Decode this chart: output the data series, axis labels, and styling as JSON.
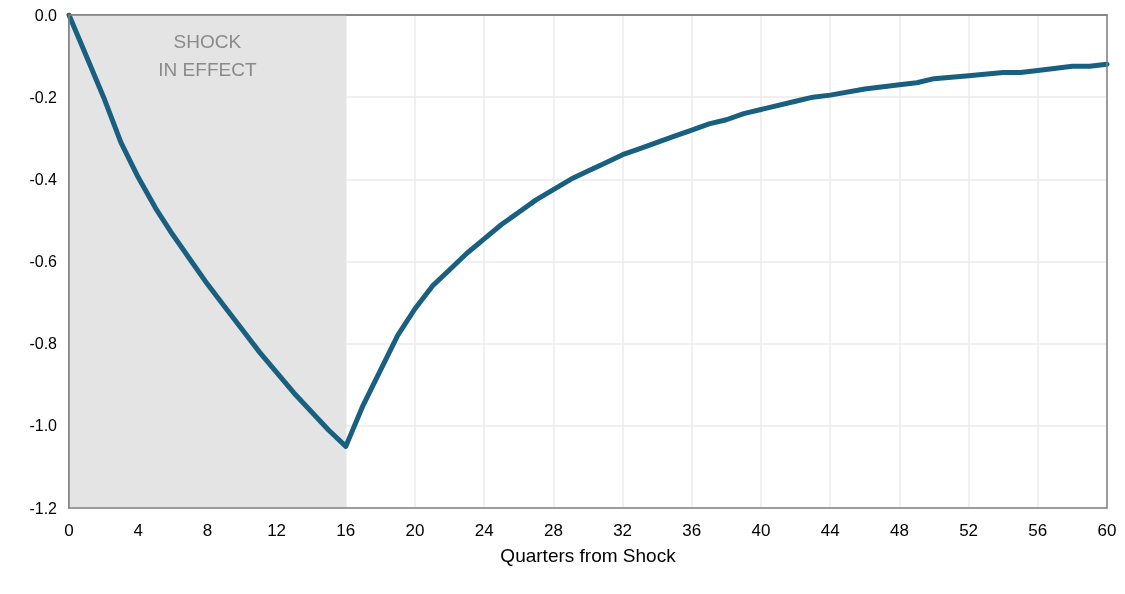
{
  "chart_data": {
    "type": "line",
    "xlabel": "Quarters from Shock",
    "x": [
      0,
      1,
      2,
      3,
      4,
      5,
      6,
      7,
      8,
      9,
      10,
      11,
      12,
      13,
      14,
      15,
      16,
      17,
      18,
      19,
      20,
      21,
      22,
      23,
      24,
      25,
      26,
      27,
      28,
      29,
      30,
      31,
      32,
      33,
      34,
      35,
      36,
      37,
      38,
      39,
      40,
      42,
      43,
      44,
      46,
      48,
      49,
      50,
      52,
      54,
      55,
      56,
      58,
      59,
      60
    ],
    "series": [
      {
        "color": "#195f80",
        "values": [
          0,
          -0.1,
          -0.2,
          -0.31,
          -0.395,
          -0.47,
          -0.535,
          -0.595,
          -0.655,
          -0.71,
          -0.765,
          -0.82,
          -0.87,
          -0.92,
          -0.965,
          -1.01,
          -1.05,
          -0.95,
          -0.865,
          -0.78,
          -0.715,
          -0.66,
          -0.62,
          -0.58,
          -0.545,
          -0.51,
          -0.48,
          -0.45,
          -0.425,
          -0.4,
          -0.38,
          -0.36,
          -0.34,
          -0.325,
          -0.31,
          -0.295,
          -0.28,
          -0.265,
          -0.255,
          -0.24,
          -0.23,
          -0.21,
          -0.2,
          -0.195,
          -0.18,
          -0.17,
          -0.165,
          -0.155,
          -0.148,
          -0.14,
          -0.14,
          -0.135,
          -0.125,
          -0.125,
          -0.12
        ]
      }
    ],
    "xlim": [
      0,
      60
    ],
    "xticks": [
      0,
      4,
      8,
      12,
      16,
      20,
      24,
      28,
      32,
      36,
      40,
      44,
      48,
      52,
      56,
      60
    ],
    "ylim": [
      -1.2,
      0
    ],
    "yticks": [
      {
        "value": -1.2,
        "label": "-1.2"
      },
      {
        "value": -1.0,
        "label": "-1.0"
      },
      -0.8,
      -0.6,
      -0.4,
      -0.2,
      {
        "value": 0,
        "label": "0.0"
      }
    ],
    "bands": [
      {
        "axis": "x",
        "from": 0,
        "to": 16,
        "label": "SHOCK\nIN EFFECT",
        "color": "#e4e4e4"
      }
    ],
    "grid": true,
    "marker": "none",
    "line_style": "solid"
  }
}
